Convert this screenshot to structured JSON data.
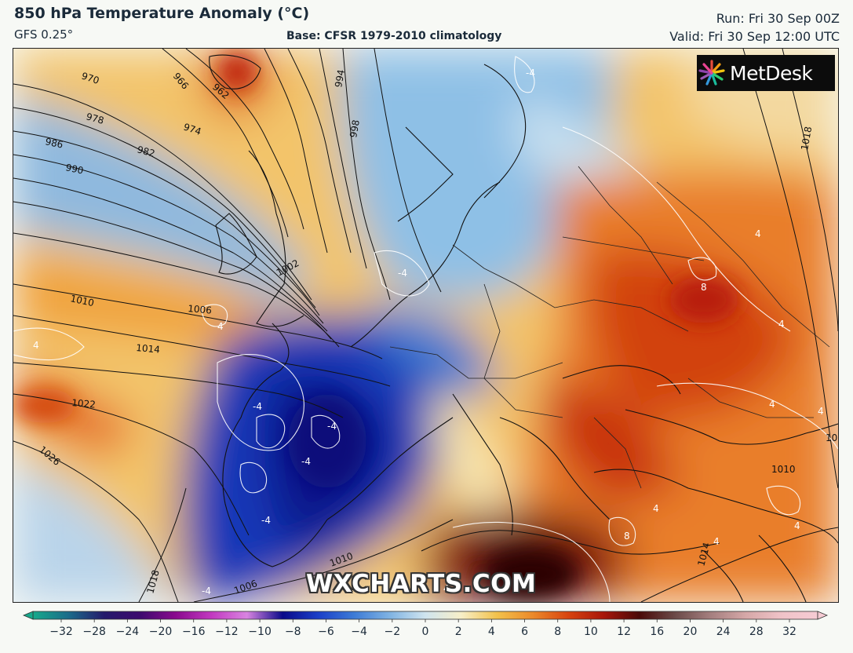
{
  "header": {
    "title": "850 hPa Temperature Anomaly (°C)",
    "model": "GFS 0.25°",
    "base": "Base: CFSR 1979-2010 climatology",
    "run": "Run: Fri 30 Sep 00Z",
    "valid": "Valid: Fri 30 Sep 12:00 UTC"
  },
  "logo": {
    "text": "MetDesk",
    "icon": "starburst-logo-icon"
  },
  "watermark": "WXCHARTS.COM",
  "isobars": [
    {
      "label": "970"
    },
    {
      "label": "966"
    },
    {
      "label": "962"
    },
    {
      "label": "974"
    },
    {
      "label": "978"
    },
    {
      "label": "982"
    },
    {
      "label": "986"
    },
    {
      "label": "990"
    },
    {
      "label": "994"
    },
    {
      "label": "998"
    },
    {
      "label": "1002"
    },
    {
      "label": "1006"
    },
    {
      "label": "1010"
    },
    {
      "label": "1014"
    },
    {
      "label": "1018"
    },
    {
      "label": "1022"
    },
    {
      "label": "1026"
    },
    {
      "label": "1010"
    },
    {
      "label": "1006"
    },
    {
      "label": "1010"
    },
    {
      "label": "1018"
    },
    {
      "label": "1014"
    },
    {
      "label": "1018"
    }
  ],
  "anomaly_labels": [
    {
      "label": "-4"
    },
    {
      "label": "-4"
    },
    {
      "label": "-4"
    },
    {
      "label": "-4"
    },
    {
      "label": "-4"
    },
    {
      "label": "-4"
    },
    {
      "label": "-4"
    },
    {
      "label": "4"
    },
    {
      "label": "4"
    },
    {
      "label": "4"
    },
    {
      "label": "4"
    },
    {
      "label": "4"
    },
    {
      "label": "4"
    },
    {
      "label": "8"
    },
    {
      "label": "8"
    },
    {
      "label": "4"
    },
    {
      "label": "4"
    },
    {
      "label": "4"
    },
    {
      "label": "4"
    }
  ],
  "colorbar": {
    "ticks": [
      "−32",
      "−28",
      "−24",
      "−20",
      "−16",
      "−12",
      "−10",
      "−8",
      "−6",
      "−4",
      "−2",
      "0",
      "2",
      "4",
      "6",
      "8",
      "10",
      "12",
      "16",
      "20",
      "24",
      "28",
      "32"
    ],
    "colors": [
      "#17a98b",
      "#1b6b8a",
      "#241a6b",
      "#3d0a6e",
      "#8a0a8e",
      "#c238c0",
      "#d884e0",
      "#0a0a8a",
      "#1a3fc8",
      "#3d7bd6",
      "#7fb3e2",
      "#cfe4ef",
      "#f7efc8",
      "#f2c24c",
      "#ec8a2a",
      "#d8440f",
      "#a8160a",
      "#4a0a08",
      "#6b4a48",
      "#a57f7f",
      "#d6a8a8",
      "#f0c3c8",
      "#f6cbd3"
    ]
  }
}
